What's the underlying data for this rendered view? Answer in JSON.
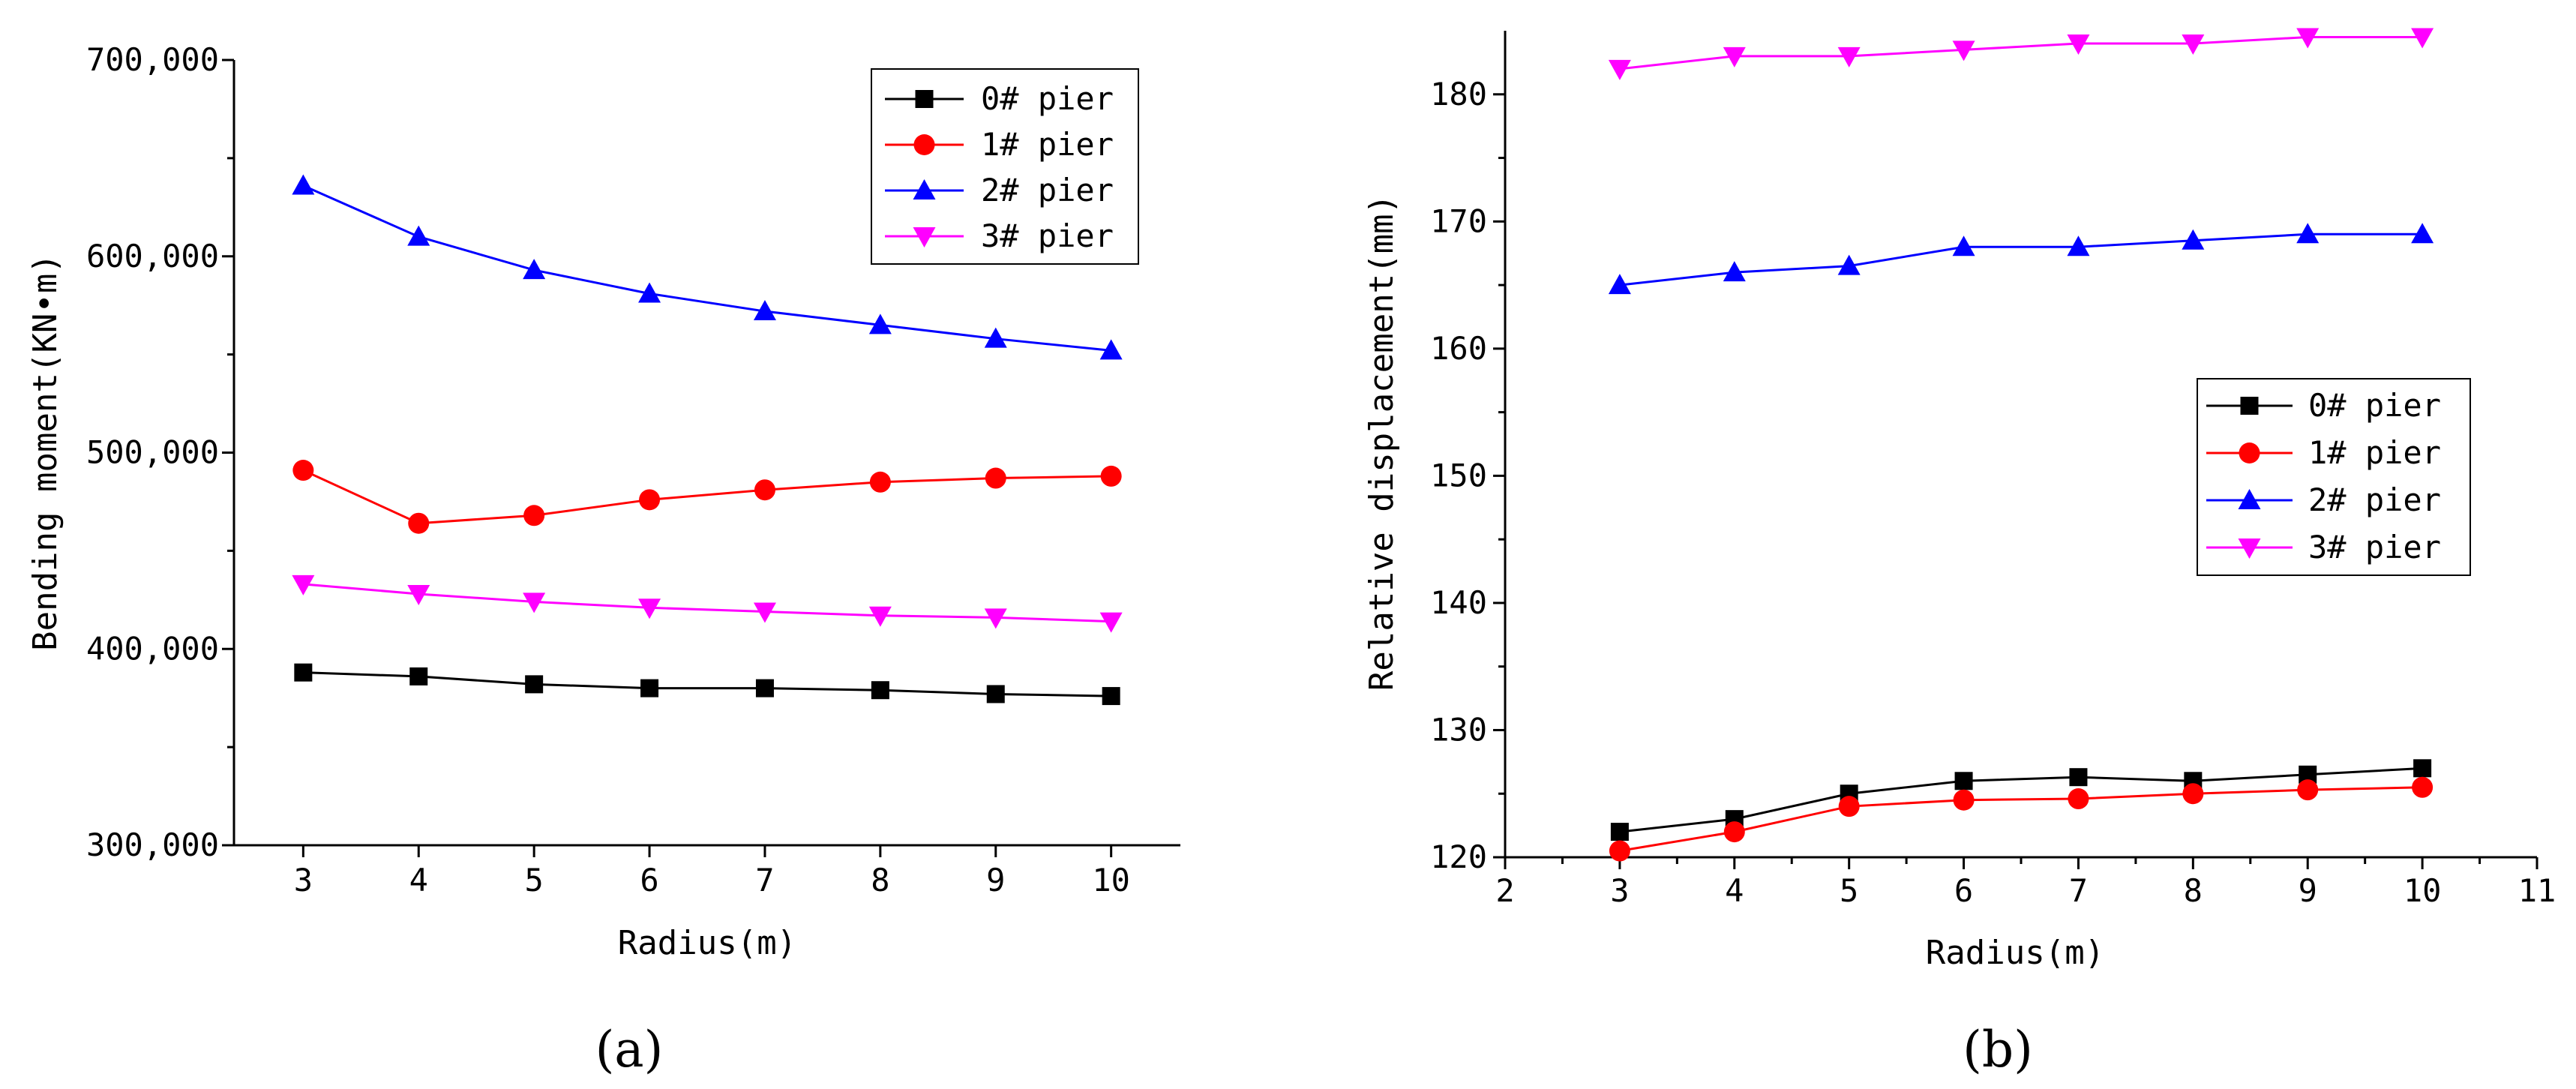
{
  "chart_data": [
    {
      "type": "line",
      "panel_label": "(a)",
      "xlabel": "Radius(m)",
      "ylabel": "Bending moment(KN•m)",
      "xlim": [
        2.4,
        10.6
      ],
      "ylim": [
        300000,
        700000
      ],
      "xticks": [
        3,
        4,
        5,
        6,
        7,
        8,
        9,
        10
      ],
      "yticks": [
        300000,
        400000,
        500000,
        600000,
        700000
      ],
      "ytick_labels": [
        "300,000",
        "400,000",
        "500,000",
        "600,000",
        "700,000"
      ],
      "x": [
        3,
        4,
        5,
        6,
        7,
        8,
        9,
        10
      ],
      "legend_position": "top-right",
      "series": [
        {
          "name": "0# pier",
          "marker": "square",
          "color": "#000000",
          "values": [
            388000,
            386000,
            382000,
            380000,
            380000,
            379000,
            377000,
            376000
          ]
        },
        {
          "name": "1# pier",
          "marker": "circle",
          "color": "#ff0000",
          "values": [
            491000,
            464000,
            468000,
            476000,
            481000,
            485000,
            487000,
            488000
          ]
        },
        {
          "name": "2# pier",
          "marker": "triangle-up",
          "color": "#0000ff",
          "values": [
            636000,
            610000,
            593000,
            581000,
            572000,
            565000,
            558000,
            552000
          ]
        },
        {
          "name": "3# pier",
          "marker": "triangle-down",
          "color": "#ff00ff",
          "values": [
            433000,
            428000,
            424000,
            421000,
            419000,
            417000,
            416000,
            414000
          ]
        }
      ]
    },
    {
      "type": "line",
      "panel_label": "(b)",
      "xlabel": "Radius(m)",
      "ylabel": "Relative displacement(mm)",
      "xlim": [
        2,
        11
      ],
      "ylim": [
        120,
        185
      ],
      "xticks": [
        2,
        3,
        4,
        5,
        6,
        7,
        8,
        9,
        10,
        11
      ],
      "yticks": [
        120,
        130,
        140,
        150,
        160,
        170,
        180
      ],
      "ytick_labels": [
        "120",
        "130",
        "140",
        "150",
        "160",
        "170",
        "180"
      ],
      "x": [
        3,
        4,
        5,
        6,
        7,
        8,
        9,
        10
      ],
      "legend_position": "center-right",
      "series": [
        {
          "name": "0# pier",
          "marker": "square",
          "color": "#000000",
          "values": [
            122,
            123,
            125,
            126,
            126.3,
            126,
            126.5,
            127
          ]
        },
        {
          "name": "1# pier",
          "marker": "circle",
          "color": "#ff0000",
          "values": [
            120.5,
            122,
            124,
            124.5,
            124.6,
            125,
            125.3,
            125.5
          ]
        },
        {
          "name": "2# pier",
          "marker": "triangle-up",
          "color": "#0000ff",
          "values": [
            165,
            166,
            166.5,
            168,
            168,
            168.5,
            169,
            169
          ]
        },
        {
          "name": "3# pier",
          "marker": "triangle-down",
          "color": "#ff00ff",
          "values": [
            182,
            183,
            183,
            183.5,
            184,
            184,
            184.5,
            184.5
          ]
        }
      ]
    }
  ]
}
